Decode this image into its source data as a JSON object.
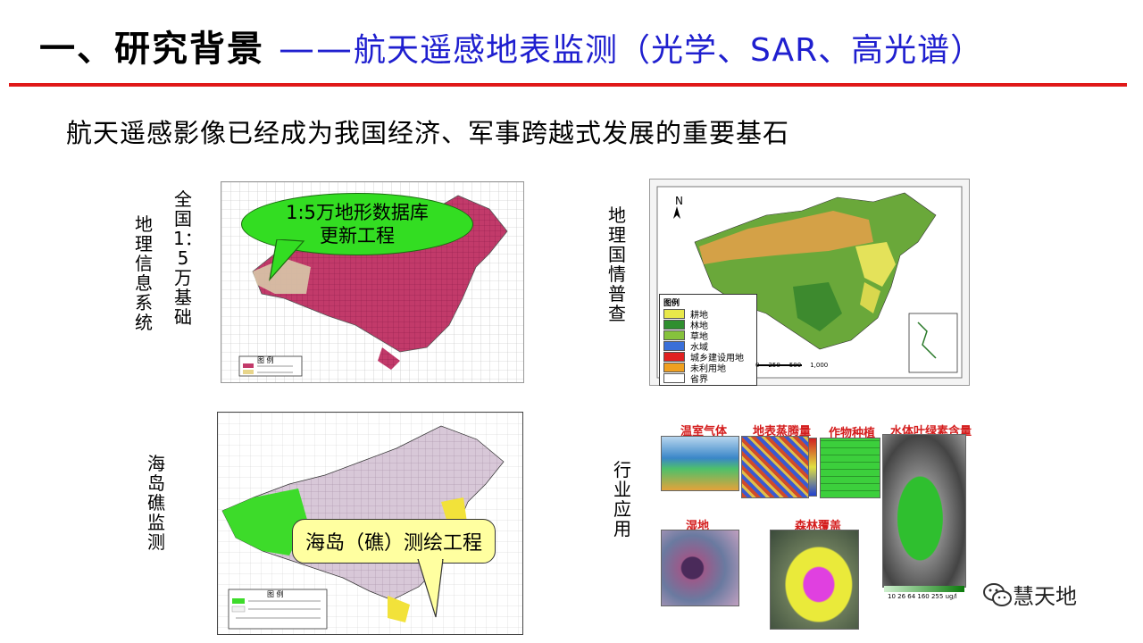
{
  "header": {
    "title_main": "一、研究背景",
    "title_dash": "——",
    "title_sub": "航天遥感地表监测（光学、SAR、高光谱）"
  },
  "subtitle": "航天遥感影像已经成为我国经济、军事跨越式发展的重要基石",
  "panels": {
    "geo_info": {
      "label_a": "全国1：5万基础",
      "label_b": "地理信息系统",
      "callout": "1:5万地形数据库更新工程",
      "legend_title": "图 例"
    },
    "census": {
      "label": "地理国情普查",
      "legend_title": "图例",
      "legend": [
        {
          "text": "耕地",
          "color": "#e8e84a"
        },
        {
          "text": "林地",
          "color": "#2f8f2f"
        },
        {
          "text": "草地",
          "color": "#86c23c"
        },
        {
          "text": "水域",
          "color": "#3a6fd8"
        },
        {
          "text": "城乡建设用地",
          "color": "#e02020"
        },
        {
          "text": "未利用地",
          "color": "#f0a020"
        },
        {
          "text": "省界",
          "color": "#ffffff"
        }
      ],
      "scale": [
        "0",
        "250",
        "500",
        "1,000"
      ]
    },
    "island": {
      "label": "海岛礁监测",
      "callout": "海岛（礁）测绘工程",
      "legend_title": "图 例"
    },
    "industry": {
      "label": "行业应用",
      "thumbs": {
        "greenhouse": "温室气体",
        "evaporation": "地表蒸腾量",
        "crop": "作物种植",
        "chlorophyll": "水体叶绿素含量",
        "wetland": "湿地",
        "forest": "森林覆盖"
      },
      "chl_scale": "10 26 64 160 255 ug/l"
    }
  },
  "watermark": "慧天地",
  "colors": {
    "accent_red": "#e01818",
    "accent_blue": "#1f1fcf"
  }
}
